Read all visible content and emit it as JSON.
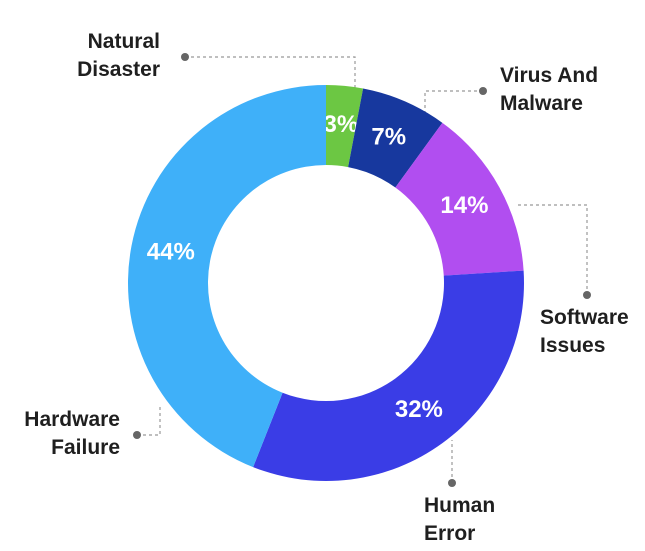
{
  "chart_data": {
    "type": "pie",
    "donut": true,
    "categories": [
      "Natural Disaster",
      "Virus And Malware",
      "Software Issues",
      "Human Error",
      "Hardware Failure"
    ],
    "values": [
      3,
      7,
      14,
      32,
      44
    ],
    "value_labels": [
      "3%",
      "7%",
      "14%",
      "32%",
      "44%"
    ],
    "colors": [
      "#6cc743",
      "#17389e",
      "#b14ef0",
      "#3a3de6",
      "#3fb0f9"
    ]
  }
}
